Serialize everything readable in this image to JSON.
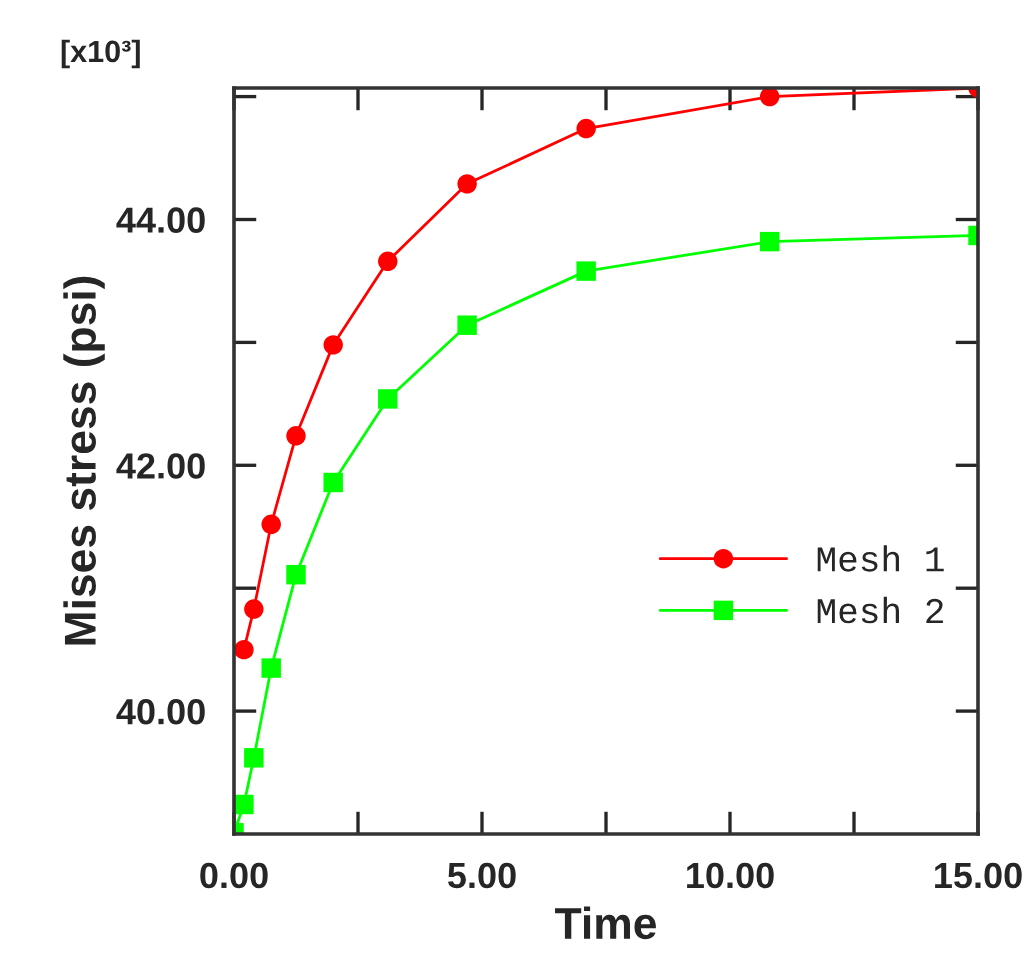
{
  "chart_data": {
    "type": "line",
    "xlabel": "Time",
    "ylabel": "Mises stress (psi)",
    "annotations": [
      "[x10³]"
    ],
    "series": [
      {
        "name": "Mesh 1",
        "color": "#ff0000",
        "marker": "circle",
        "x": [
          0.2,
          0.4,
          0.75,
          1.25,
          2.0,
          3.1,
          4.7,
          7.1,
          10.8,
          15.0
        ],
        "values": [
          40.5,
          40.83,
          41.52,
          42.24,
          42.98,
          43.66,
          44.29,
          44.74,
          45.0,
          45.07
        ]
      },
      {
        "name": "Mesh 2",
        "color": "#00ff00",
        "marker": "square",
        "x": [
          0.0,
          0.2,
          0.4,
          0.75,
          1.25,
          2.0,
          3.1,
          4.7,
          7.1,
          10.8,
          15.0
        ],
        "values": [
          39.01,
          39.24,
          39.62,
          40.35,
          41.11,
          41.86,
          42.54,
          43.14,
          43.58,
          43.82,
          43.87
        ]
      }
    ],
    "xlim": [
      0,
      15
    ],
    "ylim": [
      39.0,
      45.07
    ],
    "xticks": [
      {
        "value": 0,
        "label": "0.00"
      },
      {
        "value": 2.5,
        "label": null
      },
      {
        "value": 5,
        "label": "5.00"
      },
      {
        "value": 7.5,
        "label": null
      },
      {
        "value": 10,
        "label": "10.00"
      },
      {
        "value": 12.5,
        "label": null
      },
      {
        "value": 15,
        "label": "15.00"
      }
    ],
    "yticks": [
      {
        "value": 40,
        "label": "40.00"
      },
      {
        "value": 41,
        "label": null
      },
      {
        "value": 42,
        "label": "42.00"
      },
      {
        "value": 43,
        "label": null
      },
      {
        "value": 44,
        "label": "44.00"
      },
      {
        "value": 45,
        "label": null
      }
    ],
    "grid": false,
    "legend": "right",
    "line_style": "solid"
  }
}
